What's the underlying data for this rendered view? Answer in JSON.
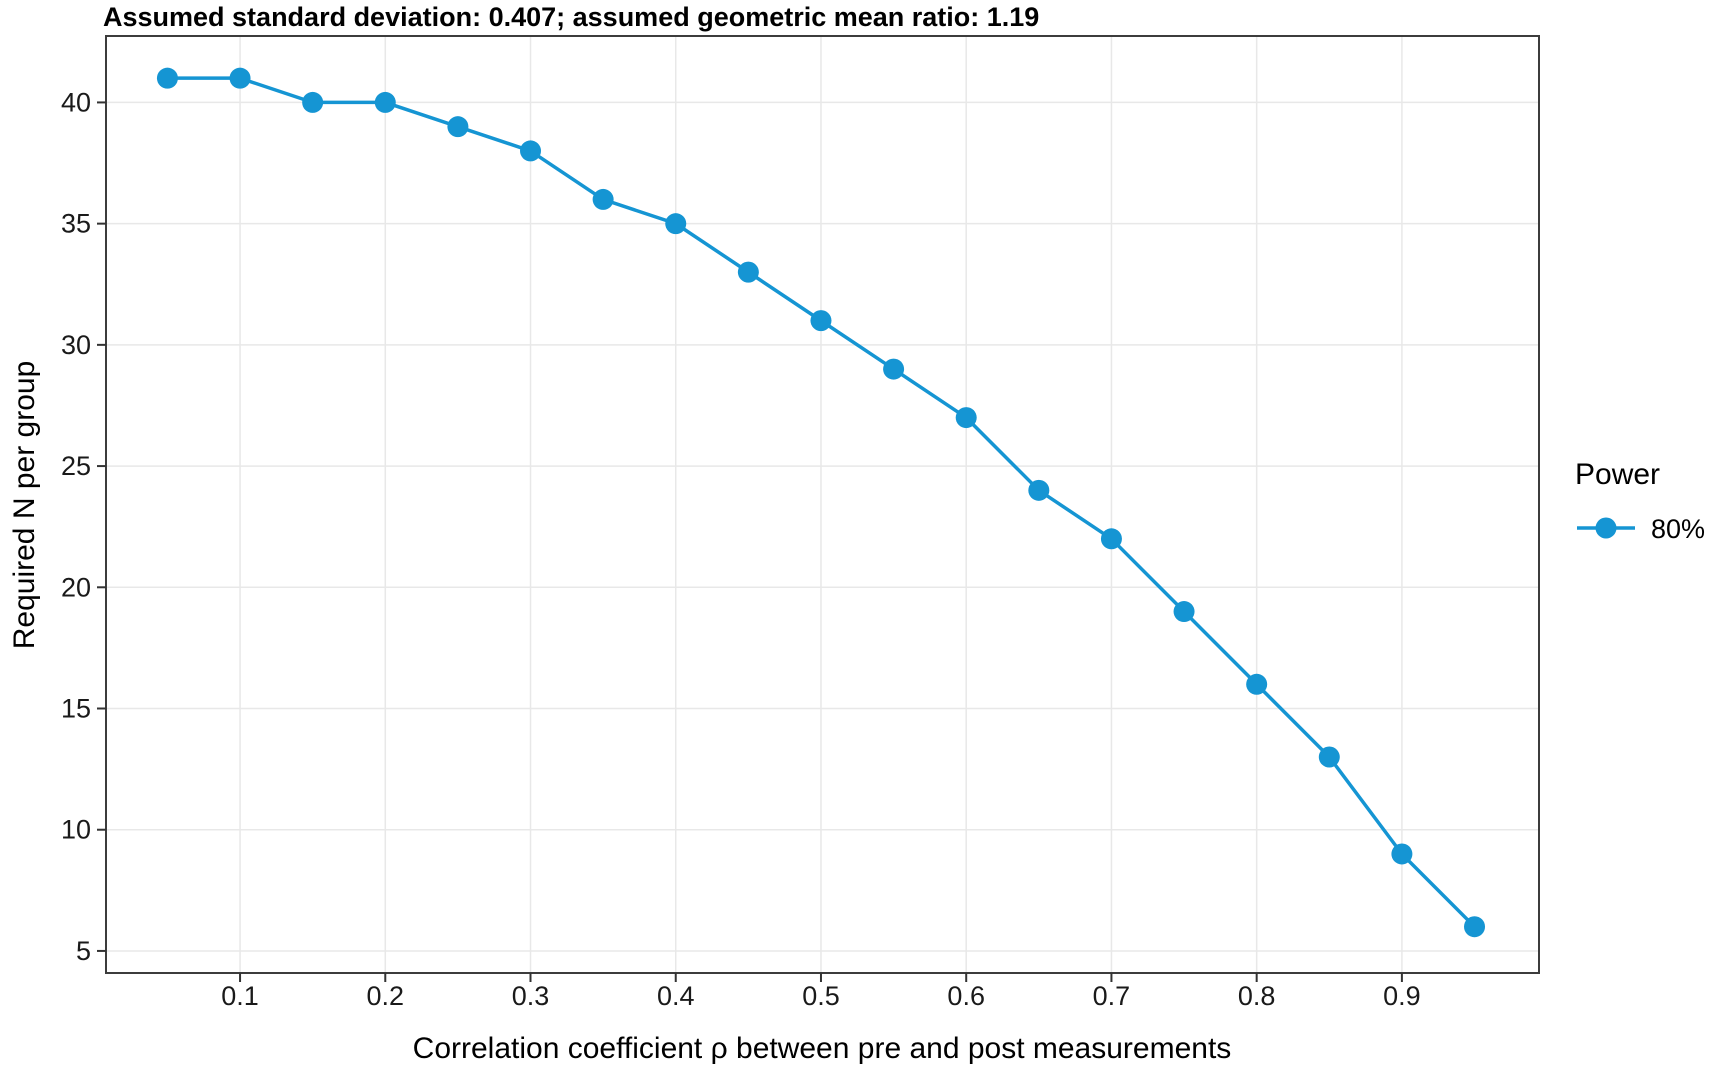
{
  "figure": {
    "title": "Assumed standard deviation: 0.407; assumed geometric mean ratio: 1.19"
  },
  "chart_data": {
    "type": "line",
    "title": "Assumed standard deviation: 0.407; assumed geometric mean ratio: 1.19",
    "xlabel": "Correlation coefficient ρ between pre and post measurements",
    "ylabel": "Required N per group",
    "x": [
      0.05,
      0.1,
      0.15,
      0.2,
      0.25,
      0.3,
      0.35,
      0.4,
      0.45,
      0.5,
      0.55,
      0.6,
      0.65,
      0.7,
      0.75,
      0.8,
      0.85,
      0.9,
      0.95
    ],
    "series": [
      {
        "name": "80%",
        "color": "#1595d3",
        "marker": "circle",
        "values": [
          41,
          41,
          40,
          40,
          39,
          38,
          36,
          35,
          33,
          31,
          29,
          27,
          24,
          22,
          19,
          16,
          13,
          9,
          6
        ]
      }
    ],
    "legend": {
      "title": "Power",
      "position": "right",
      "items": [
        {
          "label": "80%",
          "color": "#1595d3"
        }
      ]
    },
    "x_ticks": [
      0.1,
      0.2,
      0.3,
      0.4,
      0.5,
      0.6,
      0.7,
      0.8,
      0.9
    ],
    "y_ticks": [
      5,
      10,
      15,
      20,
      25,
      30,
      35,
      40
    ],
    "xlim": [
      0.0077,
      0.9944
    ],
    "ylim": [
      4.09,
      42.74
    ],
    "grid": "major",
    "styles": {
      "grid_color": "#e8e8e8",
      "panel_border_color": "#3c3c3c",
      "tick_color": "#333333",
      "point_radius": 10.5,
      "line_width": 3.5
    }
  }
}
